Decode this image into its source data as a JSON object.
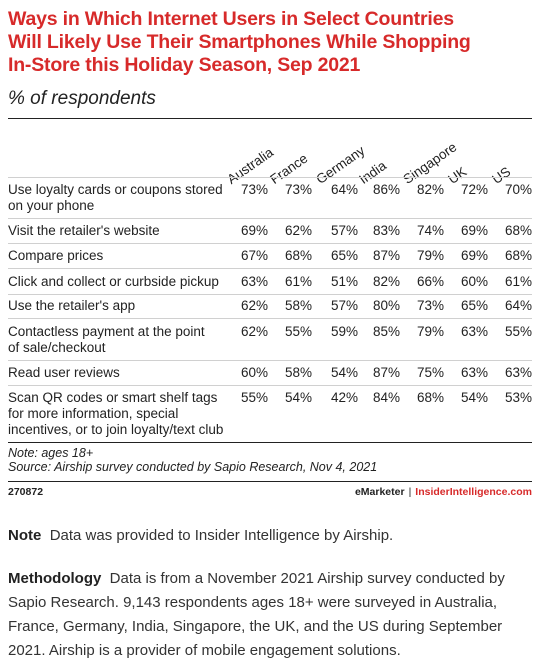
{
  "header": {
    "title_lines": [
      "Ways in Which Internet Users in Select Countries",
      "Will Likely Use Their Smartphones While Shopping",
      "In-Store this Holiday Season, Sep 2021"
    ],
    "subtitle": "% of respondents"
  },
  "chart_data": {
    "type": "table",
    "title": "Ways in Which Internet Users in Select Countries Will Likely Use Their Smartphones While Shopping In-Store this Holiday Season, Sep 2021",
    "subtitle": "% of respondents",
    "columns": [
      "Australia",
      "France",
      "Germany",
      "India",
      "Singapore",
      "UK",
      "US"
    ],
    "rows": [
      {
        "label_lines": [
          "Use loyalty cards or coupons stored",
          "on your phone"
        ],
        "values": [
          "73%",
          "73%",
          "64%",
          "86%",
          "82%",
          "72%",
          "70%"
        ]
      },
      {
        "label_lines": [
          "Visit the retailer's website"
        ],
        "values": [
          "69%",
          "62%",
          "57%",
          "83%",
          "74%",
          "69%",
          "68%"
        ]
      },
      {
        "label_lines": [
          "Compare prices"
        ],
        "values": [
          "67%",
          "68%",
          "65%",
          "87%",
          "79%",
          "69%",
          "68%"
        ]
      },
      {
        "label_lines": [
          "Click and collect or curbside pickup"
        ],
        "values": [
          "63%",
          "61%",
          "51%",
          "82%",
          "66%",
          "60%",
          "61%"
        ]
      },
      {
        "label_lines": [
          "Use the retailer's app"
        ],
        "values": [
          "62%",
          "58%",
          "57%",
          "80%",
          "73%",
          "65%",
          "64%"
        ]
      },
      {
        "label_lines": [
          "Contactless payment at the point",
          "of sale/checkout"
        ],
        "values": [
          "62%",
          "55%",
          "59%",
          "85%",
          "79%",
          "63%",
          "55%"
        ]
      },
      {
        "label_lines": [
          "Read user reviews"
        ],
        "values": [
          "60%",
          "58%",
          "54%",
          "87%",
          "75%",
          "63%",
          "63%"
        ]
      },
      {
        "label_lines": [
          "Scan QR codes or smart shelf tags",
          "for more information, special",
          "incentives, or to join loyalty/text club"
        ],
        "values": [
          "55%",
          "54%",
          "42%",
          "84%",
          "68%",
          "54%",
          "53%"
        ]
      }
    ]
  },
  "notes": {
    "note": "Note: ages 18+",
    "source": "Source: Airship survey conducted by Sapio Research, Nov 4, 2021"
  },
  "footer": {
    "chart_id": "270872",
    "brand1": "eMarketer",
    "separator": "|",
    "brand2": "InsiderIntelligence.com"
  },
  "extra": {
    "note_label": "Note",
    "note_text": "Data was provided to Insider Intelligence by Airship.",
    "method_label": "Methodology",
    "method_text": "Data is from a November 2021 Airship survey conducted by Sapio Research. 9,143 respondents ages 18+ were surveyed in Australia, France, Germany, India, Singapore, the UK, and the US during September 2021. Airship is a provider of mobile engagement solutions."
  }
}
